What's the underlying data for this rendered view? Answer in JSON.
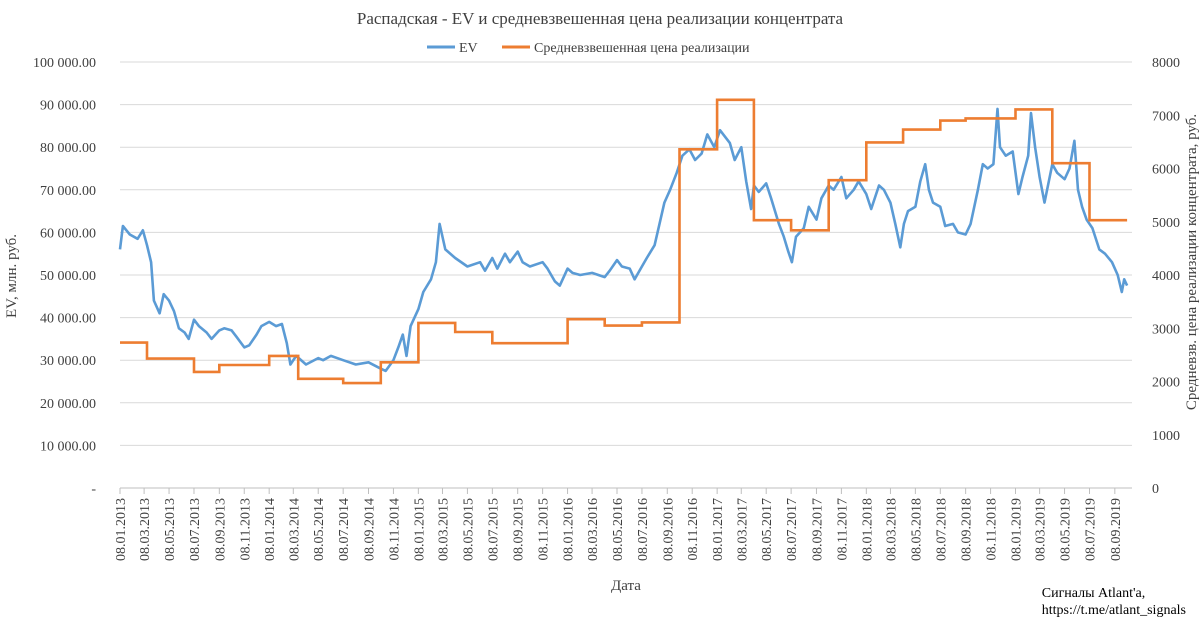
{
  "credit": {
    "line1": "Сигналы Atlant'a,",
    "line2": "https://t.me/atlant_signals"
  },
  "chart_data": {
    "type": "line",
    "title": "Распадская - EV и средневзвешенная цена реализации концентрата",
    "xlabel": "Дата",
    "ylabel_left": "EV, млн. руб.",
    "ylabel_right": "Средневзв. цена реализации концентрата, руб.",
    "x_ticks": [
      "08.01.2013",
      "08.03.2013",
      "08.05.2013",
      "08.07.2013",
      "08.09.2013",
      "08.11.2013",
      "08.01.2014",
      "08.03.2014",
      "08.05.2014",
      "08.07.2014",
      "08.09.2014",
      "08.11.2014",
      "08.01.2015",
      "08.03.2015",
      "08.05.2015",
      "08.07.2015",
      "08.09.2015",
      "08.11.2015",
      "08.01.2016",
      "08.03.2016",
      "08.05.2016",
      "08.07.2016",
      "08.09.2016",
      "08.11.2016",
      "08.01.2017",
      "08.03.2017",
      "08.05.2017",
      "08.07.2017",
      "08.09.2017",
      "08.11.2017",
      "08.01.2018",
      "08.03.2018",
      "08.05.2018",
      "08.07.2018",
      "08.09.2018",
      "08.11.2018",
      "08.01.2019",
      "08.03.2019",
      "08.05.2019",
      "08.07.2019",
      "08.09.2019"
    ],
    "y_left": {
      "ylim": [
        0,
        100000
      ],
      "ticks": [
        0,
        10000,
        20000,
        30000,
        40000,
        50000,
        60000,
        70000,
        80000,
        90000,
        100000
      ],
      "tick_labels": [
        "-",
        "10 000.00",
        "20 000.00",
        "30 000.00",
        "40 000.00",
        "50 000.00",
        "60 000.00",
        "70 000.00",
        "80 000.00",
        "90 000.00",
        "100 000.00"
      ]
    },
    "y_right": {
      "ylim": [
        0,
        8000
      ],
      "ticks": [
        0,
        1000,
        2000,
        3000,
        4000,
        5000,
        6000,
        7000,
        8000
      ],
      "tick_labels": [
        "0",
        "1000",
        "2000",
        "3000",
        "4000",
        "5000",
        "6000",
        "7000",
        "8000"
      ]
    },
    "legend_position": "top-center",
    "grid": "horizontal",
    "series": [
      {
        "name": "EV",
        "axis": "left",
        "color": "#5B9BD5",
        "points": [
          [
            "08.01.2013",
            56000
          ],
          [
            "15.01.2013",
            61500
          ],
          [
            "01.02.2013",
            59500
          ],
          [
            "20.02.2013",
            58500
          ],
          [
            "05.03.2013",
            60500
          ],
          [
            "15.03.2013",
            57000
          ],
          [
            "25.03.2013",
            53000
          ],
          [
            "01.04.2013",
            44000
          ],
          [
            "15.04.2013",
            41000
          ],
          [
            "25.04.2013",
            45500
          ],
          [
            "08.05.2013",
            44000
          ],
          [
            "20.05.2013",
            41500
          ],
          [
            "01.06.2013",
            37500
          ],
          [
            "15.06.2013",
            36500
          ],
          [
            "25.06.2013",
            35000
          ],
          [
            "08.07.2013",
            39500
          ],
          [
            "20.07.2013",
            38000
          ],
          [
            "08.08.2013",
            36500
          ],
          [
            "20.08.2013",
            35000
          ],
          [
            "08.09.2013",
            37000
          ],
          [
            "20.09.2013",
            37500
          ],
          [
            "08.10.2013",
            37000
          ],
          [
            "20.10.2013",
            35500
          ],
          [
            "08.11.2013",
            33000
          ],
          [
            "20.11.2013",
            33500
          ],
          [
            "08.12.2013",
            36000
          ],
          [
            "20.12.2013",
            38000
          ],
          [
            "08.01.2014",
            39000
          ],
          [
            "25.01.2014",
            38000
          ],
          [
            "08.02.2014",
            38500
          ],
          [
            "20.02.2014",
            34000
          ],
          [
            "01.03.2014",
            29000
          ],
          [
            "15.03.2014",
            31000
          ],
          [
            "08.04.2014",
            29000
          ],
          [
            "08.05.2014",
            30500
          ],
          [
            "20.05.2014",
            30000
          ],
          [
            "08.06.2014",
            31000
          ],
          [
            "08.07.2014",
            30000
          ],
          [
            "08.08.2014",
            29000
          ],
          [
            "08.09.2014",
            29500
          ],
          [
            "08.10.2014",
            28000
          ],
          [
            "20.10.2014",
            27500
          ],
          [
            "08.11.2014",
            30000
          ],
          [
            "20.11.2014",
            33000
          ],
          [
            "01.12.2014",
            36000
          ],
          [
            "10.12.2014",
            31000
          ],
          [
            "20.12.2014",
            38000
          ],
          [
            "08.01.2015",
            42000
          ],
          [
            "20.01.2015",
            46000
          ],
          [
            "08.02.2015",
            49000
          ],
          [
            "20.02.2015",
            53000
          ],
          [
            "01.03.2015",
            62000
          ],
          [
            "15.03.2015",
            56000
          ],
          [
            "08.04.2015",
            54000
          ],
          [
            "08.05.2015",
            52000
          ],
          [
            "08.06.2015",
            53000
          ],
          [
            "20.06.2015",
            51000
          ],
          [
            "08.07.2015",
            54000
          ],
          [
            "20.07.2015",
            51500
          ],
          [
            "08.08.2015",
            55000
          ],
          [
            "20.08.2015",
            53000
          ],
          [
            "08.09.2015",
            55500
          ],
          [
            "20.09.2015",
            53000
          ],
          [
            "08.10.2015",
            52000
          ],
          [
            "08.11.2015",
            53000
          ],
          [
            "20.11.2015",
            51500
          ],
          [
            "08.12.2015",
            48500
          ],
          [
            "20.12.2015",
            47500
          ],
          [
            "08.01.2016",
            51500
          ],
          [
            "20.01.2016",
            50500
          ],
          [
            "08.02.2016",
            50000
          ],
          [
            "08.03.2016",
            50500
          ],
          [
            "08.04.2016",
            49500
          ],
          [
            "20.04.2016",
            51000
          ],
          [
            "08.05.2016",
            53500
          ],
          [
            "20.05.2016",
            52000
          ],
          [
            "08.06.2016",
            51500
          ],
          [
            "20.06.2016",
            49000
          ],
          [
            "08.07.2016",
            52000
          ],
          [
            "20.07.2016",
            54000
          ],
          [
            "08.08.2016",
            57000
          ],
          [
            "20.08.2016",
            62000
          ],
          [
            "01.09.2016",
            67000
          ],
          [
            "15.09.2016",
            70000
          ],
          [
            "01.10.2016",
            74000
          ],
          [
            "15.10.2016",
            78000
          ],
          [
            "01.11.2016",
            79500
          ],
          [
            "15.11.2016",
            77000
          ],
          [
            "01.12.2016",
            78500
          ],
          [
            "15.12.2016",
            83000
          ],
          [
            "01.01.2017",
            80000
          ],
          [
            "15.01.2017",
            84000
          ],
          [
            "08.02.2017",
            81000
          ],
          [
            "20.02.2017",
            77000
          ],
          [
            "08.03.2017",
            80000
          ],
          [
            "20.03.2017",
            72000
          ],
          [
            "01.04.2017",
            65500
          ],
          [
            "08.04.2017",
            71000
          ],
          [
            "20.04.2017",
            69500
          ],
          [
            "08.05.2017",
            71500
          ],
          [
            "20.05.2017",
            68000
          ],
          [
            "08.06.2017",
            62000
          ],
          [
            "20.06.2017",
            59000
          ],
          [
            "01.07.2017",
            55500
          ],
          [
            "10.07.2017",
            53000
          ],
          [
            "20.07.2017",
            59000
          ],
          [
            "08.08.2017",
            61000
          ],
          [
            "20.08.2017",
            66000
          ],
          [
            "08.09.2017",
            63000
          ],
          [
            "20.09.2017",
            68000
          ],
          [
            "08.10.2017",
            71000
          ],
          [
            "20.10.2017",
            70000
          ],
          [
            "08.11.2017",
            73000
          ],
          [
            "20.11.2017",
            68000
          ],
          [
            "08.12.2017",
            70000
          ],
          [
            "20.12.2017",
            72000
          ],
          [
            "08.01.2018",
            69000
          ],
          [
            "20.01.2018",
            65500
          ],
          [
            "08.02.2018",
            71000
          ],
          [
            "20.02.2018",
            70000
          ],
          [
            "08.03.2018",
            67000
          ],
          [
            "20.03.2018",
            62000
          ],
          [
            "01.04.2018",
            56500
          ],
          [
            "10.04.2018",
            62000
          ],
          [
            "20.04.2018",
            65000
          ],
          [
            "08.05.2018",
            66000
          ],
          [
            "20.05.2018",
            72000
          ],
          [
            "01.06.2018",
            76000
          ],
          [
            "10.06.2018",
            70000
          ],
          [
            "20.06.2018",
            67000
          ],
          [
            "08.07.2018",
            66000
          ],
          [
            "20.07.2018",
            61500
          ],
          [
            "08.08.2018",
            62000
          ],
          [
            "20.08.2018",
            60000
          ],
          [
            "08.09.2018",
            59500
          ],
          [
            "20.09.2018",
            62000
          ],
          [
            "08.10.2018",
            70000
          ],
          [
            "20.10.2018",
            76000
          ],
          [
            "01.11.2018",
            75000
          ],
          [
            "15.11.2018",
            76000
          ],
          [
            "25.11.2018",
            89000
          ],
          [
            "01.12.2018",
            80000
          ],
          [
            "15.12.2018",
            78000
          ],
          [
            "01.01.2019",
            79000
          ],
          [
            "15.01.2019",
            69000
          ],
          [
            "25.01.2019",
            73000
          ],
          [
            "08.02.2019",
            78000
          ],
          [
            "15.02.2019",
            88000
          ],
          [
            "25.02.2019",
            80000
          ],
          [
            "08.03.2019",
            73000
          ],
          [
            "20.03.2019",
            67000
          ],
          [
            "08.04.2019",
            76000
          ],
          [
            "20.04.2019",
            74000
          ],
          [
            "08.05.2019",
            72500
          ],
          [
            "20.05.2019",
            75000
          ],
          [
            "01.06.2019",
            81500
          ],
          [
            "10.06.2019",
            70000
          ],
          [
            "20.06.2019",
            66000
          ],
          [
            "01.07.2019",
            63000
          ],
          [
            "15.07.2019",
            61000
          ],
          [
            "01.08.2019",
            56000
          ],
          [
            "15.08.2019",
            55000
          ],
          [
            "01.09.2019",
            53000
          ],
          [
            "15.09.2019",
            50000
          ],
          [
            "25.09.2019",
            46000
          ],
          [
            "01.10.2019",
            49000
          ],
          [
            "08.10.2019",
            47500
          ]
        ]
      },
      {
        "name": "Средневзвешенная цена реализации",
        "axis": "right",
        "color": "#ED7D31",
        "step_points": [
          [
            "08.01.2013",
            2730
          ],
          [
            "15.03.2013",
            2430
          ],
          [
            "08.07.2013",
            2180
          ],
          [
            "08.09.2013",
            2310
          ],
          [
            "08.01.2014",
            2480
          ],
          [
            "20.03.2014",
            2050
          ],
          [
            "08.07.2014",
            1970
          ],
          [
            "08.10.2014",
            2360
          ],
          [
            "08.01.2015",
            3100
          ],
          [
            "08.04.2015",
            2930
          ],
          [
            "08.07.2015",
            2720
          ],
          [
            "08.01.2016",
            3170
          ],
          [
            "08.04.2016",
            3050
          ],
          [
            "08.07.2016",
            3110
          ],
          [
            "08.10.2016",
            6360
          ],
          [
            "08.01.2017",
            7290
          ],
          [
            "08.04.2017",
            5030
          ],
          [
            "08.07.2017",
            4840
          ],
          [
            "08.10.2017",
            5780
          ],
          [
            "08.01.2018",
            6490
          ],
          [
            "08.04.2018",
            6730
          ],
          [
            "08.07.2018",
            6900
          ],
          [
            "08.09.2018",
            6940
          ],
          [
            "08.01.2019",
            7110
          ],
          [
            "08.04.2019",
            6100
          ],
          [
            "08.07.2019",
            5030
          ],
          [
            "08.10.2019",
            5030
          ]
        ]
      }
    ]
  }
}
